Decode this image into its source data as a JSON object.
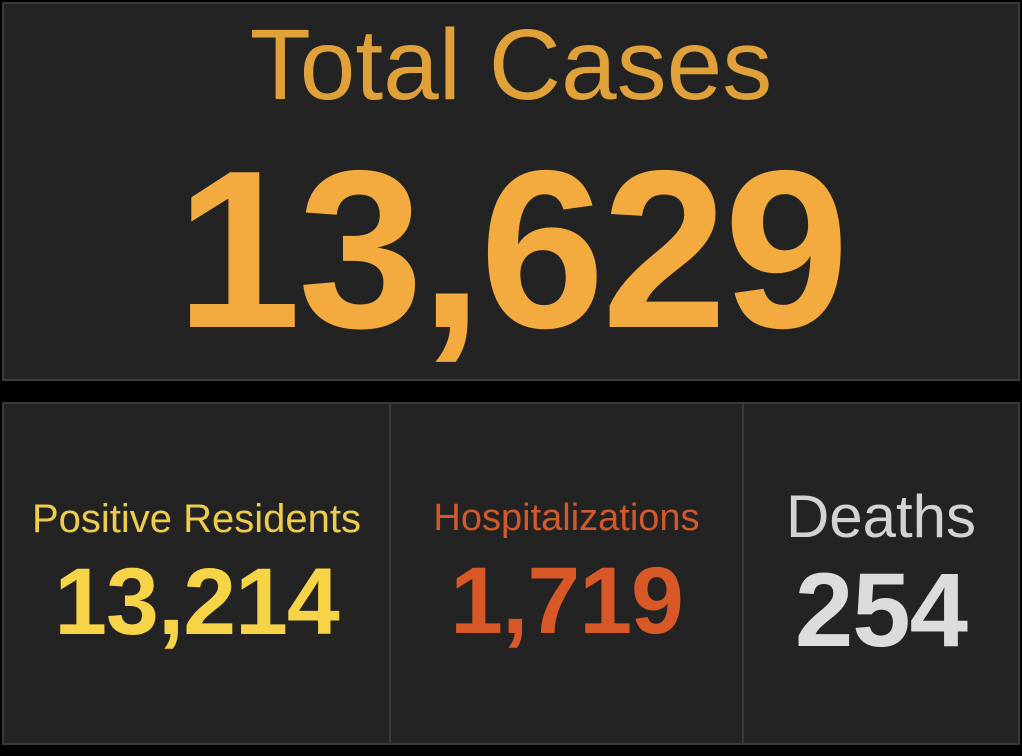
{
  "hero_card": {
    "label": "Total Cases",
    "value": "13,629",
    "label_color": "#E0A13B",
    "value_color": "#F3AB3F"
  },
  "cards": [
    {
      "id": "positive-residents",
      "label": "Positive Residents",
      "value": "13,214",
      "label_color": "#EDCC4E",
      "value_color": "#F6D347"
    },
    {
      "id": "hospitalizations",
      "label": "Hospitalizations",
      "value": "1,719",
      "label_color": "#D2592B",
      "value_color": "#D95827"
    },
    {
      "id": "deaths",
      "label": "Deaths",
      "value": "254",
      "label_color": "#D3D3D3",
      "value_color": "#DCDCDC"
    }
  ],
  "theme": {
    "page_bg": "#000000",
    "panel_bg": "#232323",
    "panel_border": "#3A3A3A"
  },
  "chart_data": {
    "type": "table",
    "title": "Total Cases",
    "categories": [
      "Total Cases",
      "Positive Residents",
      "Hospitalizations",
      "Deaths"
    ],
    "values": [
      13629,
      13214,
      1719,
      254
    ],
    "layout_hints": {
      "style": "KPI indicator cards",
      "rows": 2,
      "top_row": [
        "Total Cases"
      ],
      "bottom_row": [
        "Positive Residents",
        "Hospitalizations",
        "Deaths"
      ],
      "background": "dark"
    }
  }
}
